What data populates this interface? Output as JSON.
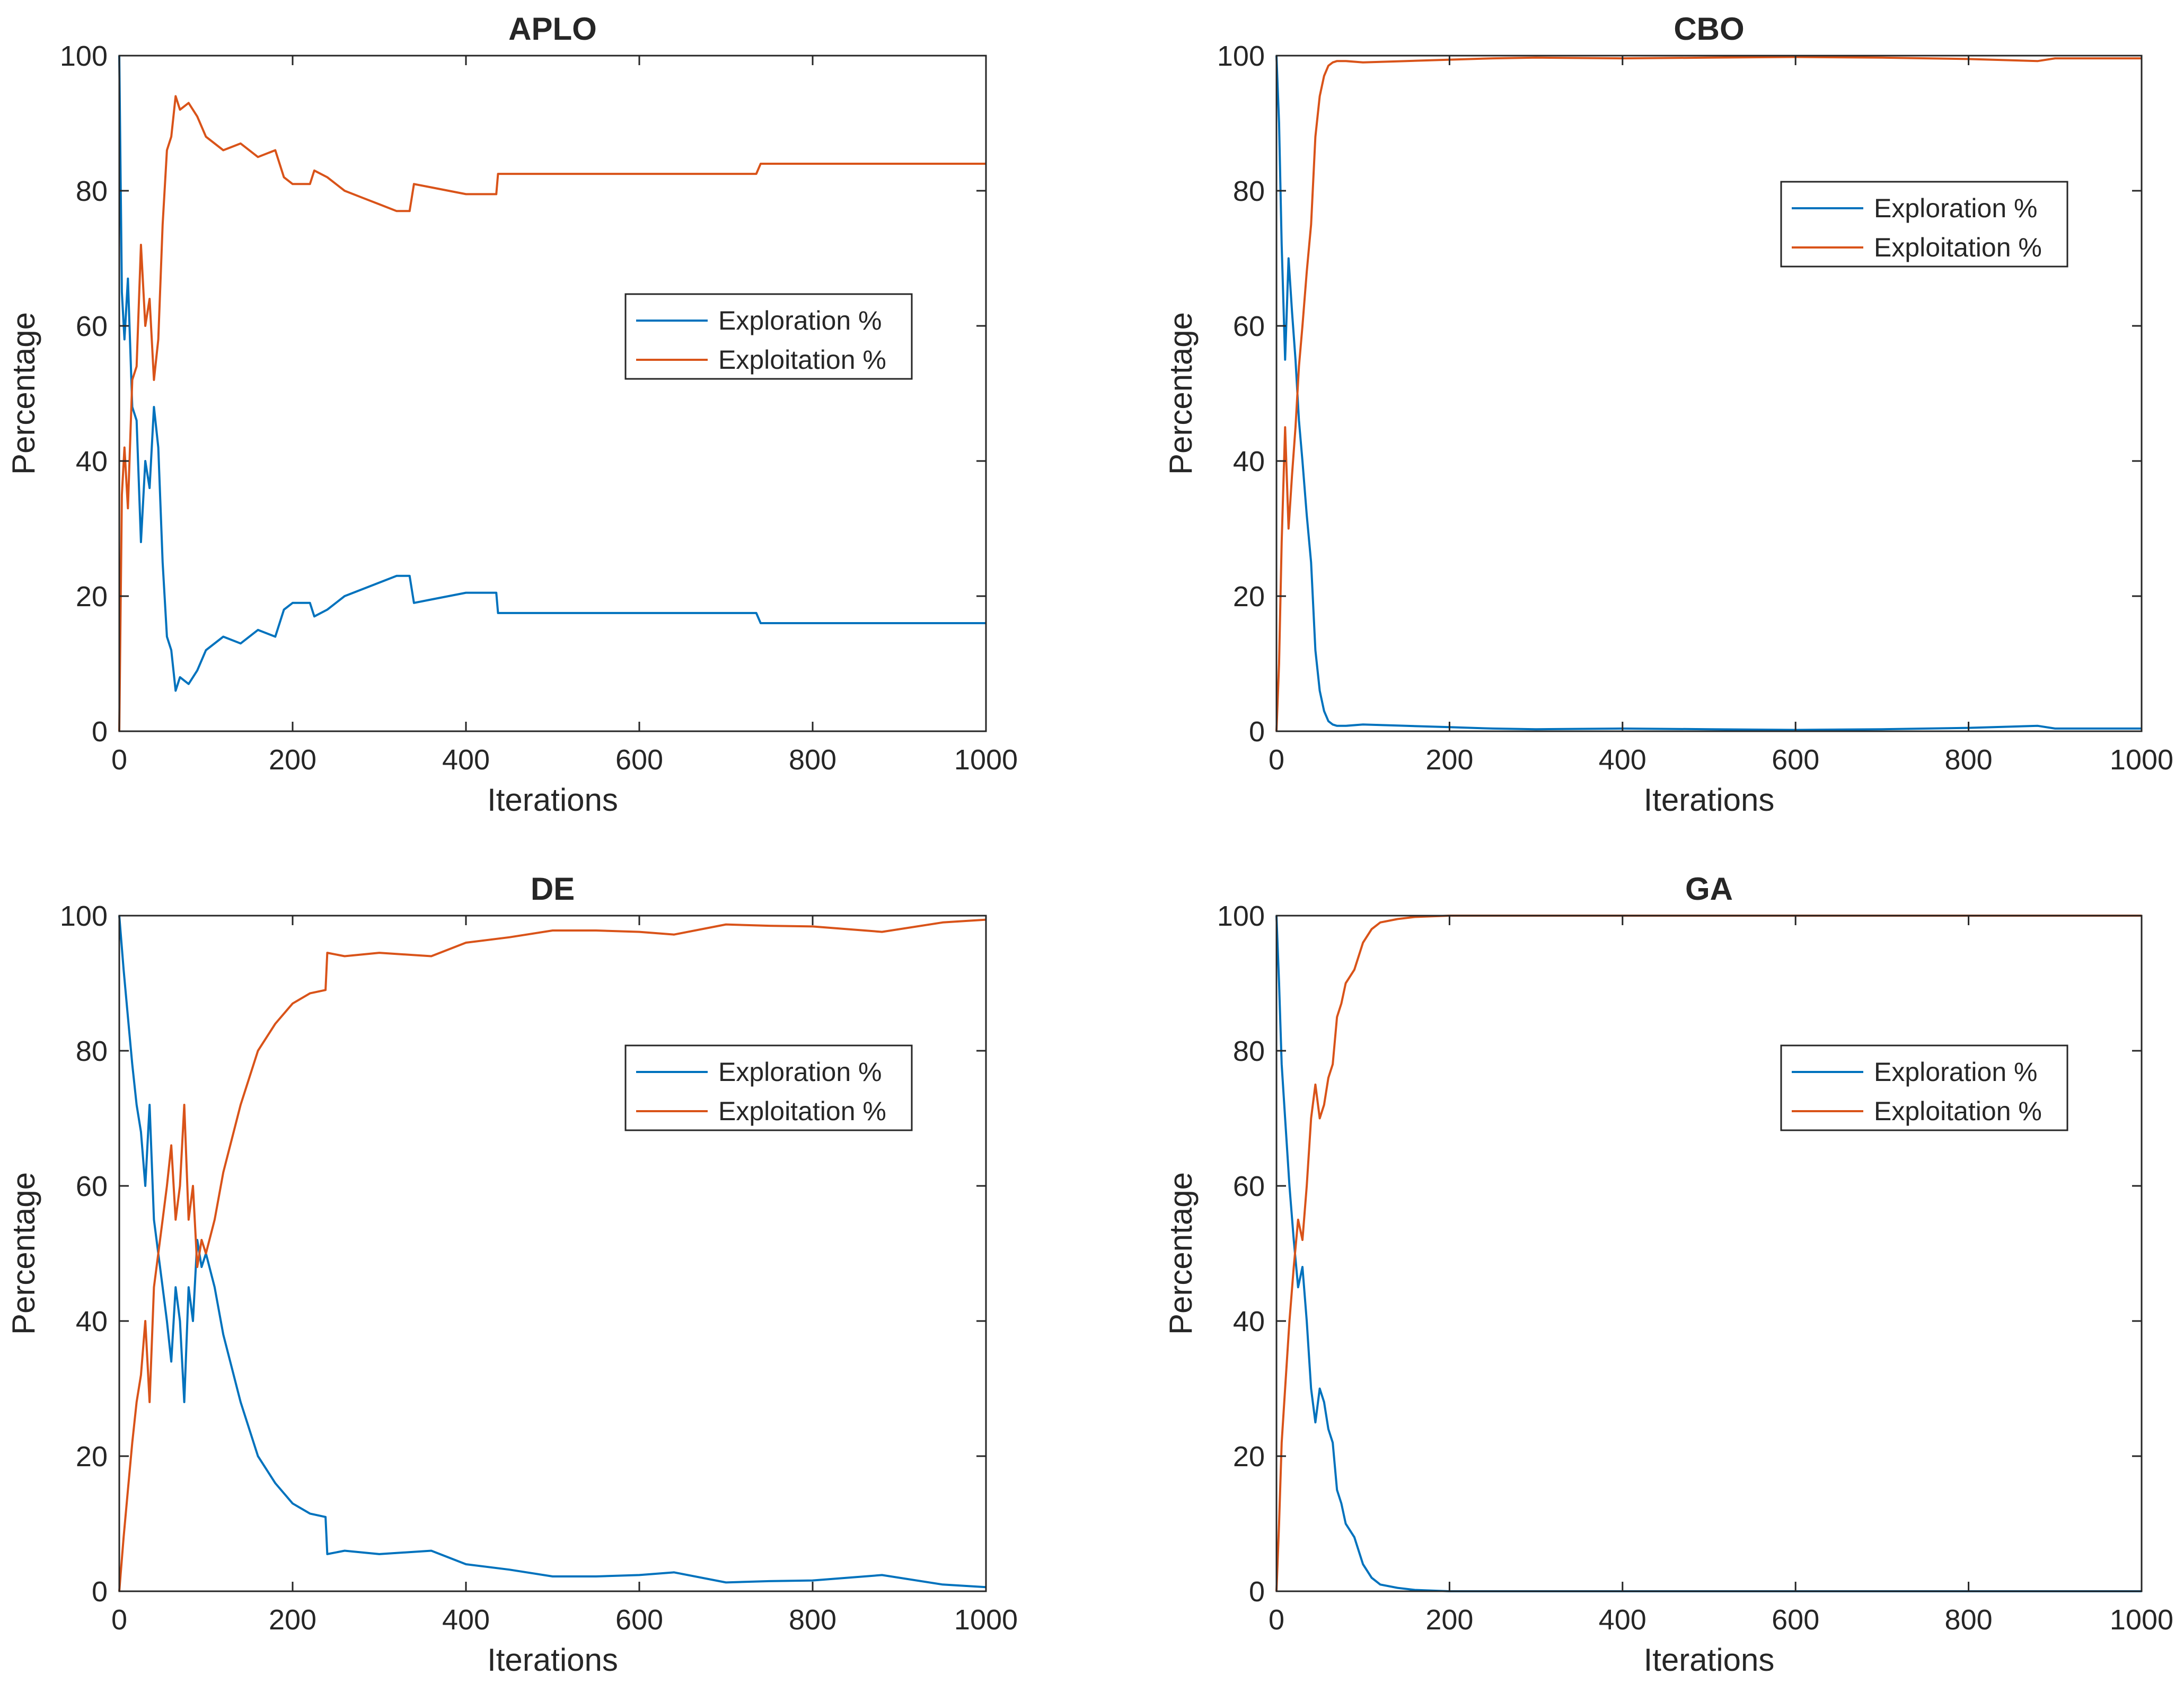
{
  "colors": {
    "exploration": "#0072BD",
    "exploitation": "#D95319",
    "axis": "#262626",
    "background": "#ffffff"
  },
  "chart_data": [
    {
      "type": "line",
      "title": "APLO",
      "xlabel": "Iterations",
      "ylabel": "Percentage",
      "xlim": [
        0,
        1000
      ],
      "ylim": [
        0,
        100
      ],
      "xticks": [
        "0",
        "200",
        "400",
        "600",
        "800",
        "1000"
      ],
      "yticks": [
        "0",
        "20",
        "40",
        "60",
        "80",
        "100"
      ],
      "legend": {
        "position": "right-center",
        "entries": [
          "Exploration %",
          "Exploitation %"
        ]
      },
      "series": [
        {
          "name": "Exploration %",
          "x": [
            0,
            3,
            6,
            10,
            15,
            20,
            25,
            30,
            35,
            40,
            45,
            50,
            55,
            60,
            65,
            70,
            80,
            90,
            100,
            120,
            140,
            160,
            180,
            190,
            200,
            220,
            225,
            240,
            260,
            280,
            300,
            320,
            335,
            340,
            360,
            400,
            435,
            437,
            500,
            600,
            700,
            735,
            740,
            800,
            900,
            1000
          ],
          "values": [
            100,
            65,
            58,
            67,
            48,
            46,
            28,
            40,
            36,
            48,
            42,
            25,
            14,
            12,
            6,
            8,
            7,
            9,
            12,
            14,
            13,
            15,
            14,
            18,
            19,
            19,
            17,
            18,
            20,
            21,
            22,
            23,
            23,
            19,
            19.5,
            20.5,
            20.5,
            17.5,
            17.5,
            17.5,
            17.5,
            17.5,
            16,
            16,
            16,
            16
          ]
        },
        {
          "name": "Exploitation %",
          "x": [
            0,
            3,
            6,
            10,
            15,
            20,
            25,
            30,
            35,
            40,
            45,
            50,
            55,
            60,
            65,
            70,
            80,
            90,
            100,
            120,
            140,
            160,
            180,
            190,
            200,
            220,
            225,
            240,
            260,
            280,
            300,
            320,
            335,
            340,
            360,
            400,
            435,
            437,
            500,
            600,
            700,
            735,
            740,
            800,
            900,
            1000
          ],
          "values": [
            0,
            35,
            42,
            33,
            52,
            54,
            72,
            60,
            64,
            52,
            58,
            75,
            86,
            88,
            94,
            92,
            93,
            91,
            88,
            86,
            87,
            85,
            86,
            82,
            81,
            81,
            83,
            82,
            80,
            79,
            78,
            77,
            77,
            81,
            80.5,
            79.5,
            79.5,
            82.5,
            82.5,
            82.5,
            82.5,
            82.5,
            84,
            84,
            84,
            84
          ]
        }
      ]
    },
    {
      "type": "line",
      "title": "CBO",
      "xlabel": "Iterations",
      "ylabel": "Percentage",
      "xlim": [
        0,
        1000
      ],
      "ylim": [
        0,
        100
      ],
      "xticks": [
        "0",
        "200",
        "400",
        "600",
        "800",
        "1000"
      ],
      "yticks": [
        "0",
        "20",
        "40",
        "60",
        "80",
        "100"
      ],
      "legend": {
        "position": "top-right",
        "entries": [
          "Exploration %",
          "Exploitation %"
        ]
      },
      "series": [
        {
          "name": "Exploration %",
          "x": [
            0,
            3,
            6,
            10,
            14,
            18,
            22,
            26,
            30,
            35,
            40,
            45,
            50,
            55,
            60,
            65,
            70,
            80,
            100,
            150,
            200,
            250,
            300,
            400,
            500,
            600,
            700,
            800,
            880,
            900,
            1000
          ],
          "values": [
            100,
            90,
            72,
            55,
            70,
            62,
            55,
            46,
            40,
            32,
            25,
            12,
            6,
            3,
            1.5,
            1,
            0.8,
            0.8,
            1,
            0.8,
            0.6,
            0.4,
            0.3,
            0.4,
            0.3,
            0.2,
            0.3,
            0.5,
            0.8,
            0.4,
            0.4
          ]
        },
        {
          "name": "Exploitation %",
          "x": [
            0,
            3,
            6,
            10,
            14,
            18,
            22,
            26,
            30,
            35,
            40,
            45,
            50,
            55,
            60,
            65,
            70,
            80,
            100,
            150,
            200,
            250,
            300,
            400,
            500,
            600,
            700,
            800,
            880,
            900,
            1000
          ],
          "values": [
            0,
            10,
            28,
            45,
            30,
            38,
            45,
            54,
            60,
            68,
            75,
            88,
            94,
            97,
            98.5,
            99,
            99.2,
            99.2,
            99,
            99.2,
            99.4,
            99.6,
            99.7,
            99.6,
            99.7,
            99.8,
            99.7,
            99.5,
            99.2,
            99.6,
            99.6
          ]
        }
      ]
    },
    {
      "type": "line",
      "title": "DE",
      "xlabel": "Iterations",
      "ylabel": "Percentage",
      "xlim": [
        0,
        1000
      ],
      "ylim": [
        0,
        100
      ],
      "xticks": [
        "0",
        "200",
        "400",
        "600",
        "800",
        "1000"
      ],
      "yticks": [
        "0",
        "20",
        "40",
        "60",
        "80",
        "100"
      ],
      "legend": {
        "position": "top-right",
        "entries": [
          "Exploration %",
          "Exploitation %"
        ]
      },
      "series": [
        {
          "name": "Exploration %",
          "x": [
            0,
            5,
            10,
            15,
            20,
            25,
            30,
            35,
            40,
            45,
            50,
            55,
            60,
            65,
            70,
            75,
            80,
            85,
            90,
            95,
            100,
            110,
            120,
            140,
            160,
            180,
            200,
            220,
            238,
            240,
            260,
            300,
            360,
            400,
            450,
            500,
            550,
            600,
            640,
            700,
            750,
            800,
            880,
            950,
            1000
          ],
          "values": [
            100,
            92,
            85,
            78,
            72,
            68,
            60,
            72,
            55,
            50,
            45,
            40,
            34,
            45,
            40,
            28,
            45,
            40,
            52,
            48,
            50,
            45,
            38,
            28,
            20,
            16,
            13,
            11.5,
            11,
            5.5,
            6,
            5.5,
            6,
            4,
            3.2,
            2.2,
            2.2,
            2.4,
            2.8,
            1.3,
            1.5,
            1.6,
            2.4,
            1,
            0.6
          ]
        },
        {
          "name": "Exploitation %",
          "x": [
            0,
            5,
            10,
            15,
            20,
            25,
            30,
            35,
            40,
            45,
            50,
            55,
            60,
            65,
            70,
            75,
            80,
            85,
            90,
            95,
            100,
            110,
            120,
            140,
            160,
            180,
            200,
            220,
            238,
            240,
            260,
            300,
            360,
            400,
            450,
            500,
            550,
            600,
            640,
            700,
            750,
            800,
            880,
            950,
            1000
          ],
          "values": [
            0,
            8,
            15,
            22,
            28,
            32,
            40,
            28,
            45,
            50,
            55,
            60,
            66,
            55,
            60,
            72,
            55,
            60,
            48,
            52,
            50,
            55,
            62,
            72,
            80,
            84,
            87,
            88.5,
            89,
            94.5,
            94,
            94.5,
            94,
            96,
            96.8,
            97.8,
            97.8,
            97.6,
            97.2,
            98.7,
            98.5,
            98.4,
            97.6,
            99,
            99.4
          ]
        }
      ]
    },
    {
      "type": "line",
      "title": "GA",
      "xlabel": "Iterations",
      "ylabel": "Percentage",
      "xlim": [
        0,
        1000
      ],
      "ylim": [
        0,
        100
      ],
      "xticks": [
        "0",
        "200",
        "400",
        "600",
        "800",
        "1000"
      ],
      "yticks": [
        "0",
        "20",
        "40",
        "60",
        "80",
        "100"
      ],
      "legend": {
        "position": "top-right",
        "entries": [
          "Exploration %",
          "Exploitation %"
        ]
      },
      "series": [
        {
          "name": "Exploration %",
          "x": [
            0,
            3,
            6,
            10,
            15,
            20,
            25,
            30,
            35,
            40,
            45,
            50,
            55,
            60,
            65,
            70,
            75,
            80,
            90,
            100,
            110,
            120,
            140,
            160,
            200,
            300,
            400,
            500,
            600,
            700,
            800,
            900,
            1000
          ],
          "values": [
            100,
            90,
            78,
            70,
            60,
            52,
            45,
            48,
            40,
            30,
            25,
            30,
            28,
            24,
            22,
            15,
            13,
            10,
            8,
            4,
            2,
            1,
            0.5,
            0.2,
            0,
            0,
            0,
            0,
            0,
            0,
            0,
            0,
            0
          ]
        },
        {
          "name": "Exploitation %",
          "x": [
            0,
            3,
            6,
            10,
            15,
            20,
            25,
            30,
            35,
            40,
            45,
            50,
            55,
            60,
            65,
            70,
            75,
            80,
            90,
            100,
            110,
            120,
            140,
            160,
            200,
            300,
            400,
            500,
            600,
            700,
            800,
            900,
            1000
          ],
          "values": [
            0,
            10,
            22,
            30,
            40,
            48,
            55,
            52,
            60,
            70,
            75,
            70,
            72,
            76,
            78,
            85,
            87,
            90,
            92,
            96,
            98,
            99,
            99.5,
            99.8,
            100,
            100,
            100,
            100,
            100,
            100,
            100,
            100,
            100
          ]
        }
      ]
    }
  ]
}
